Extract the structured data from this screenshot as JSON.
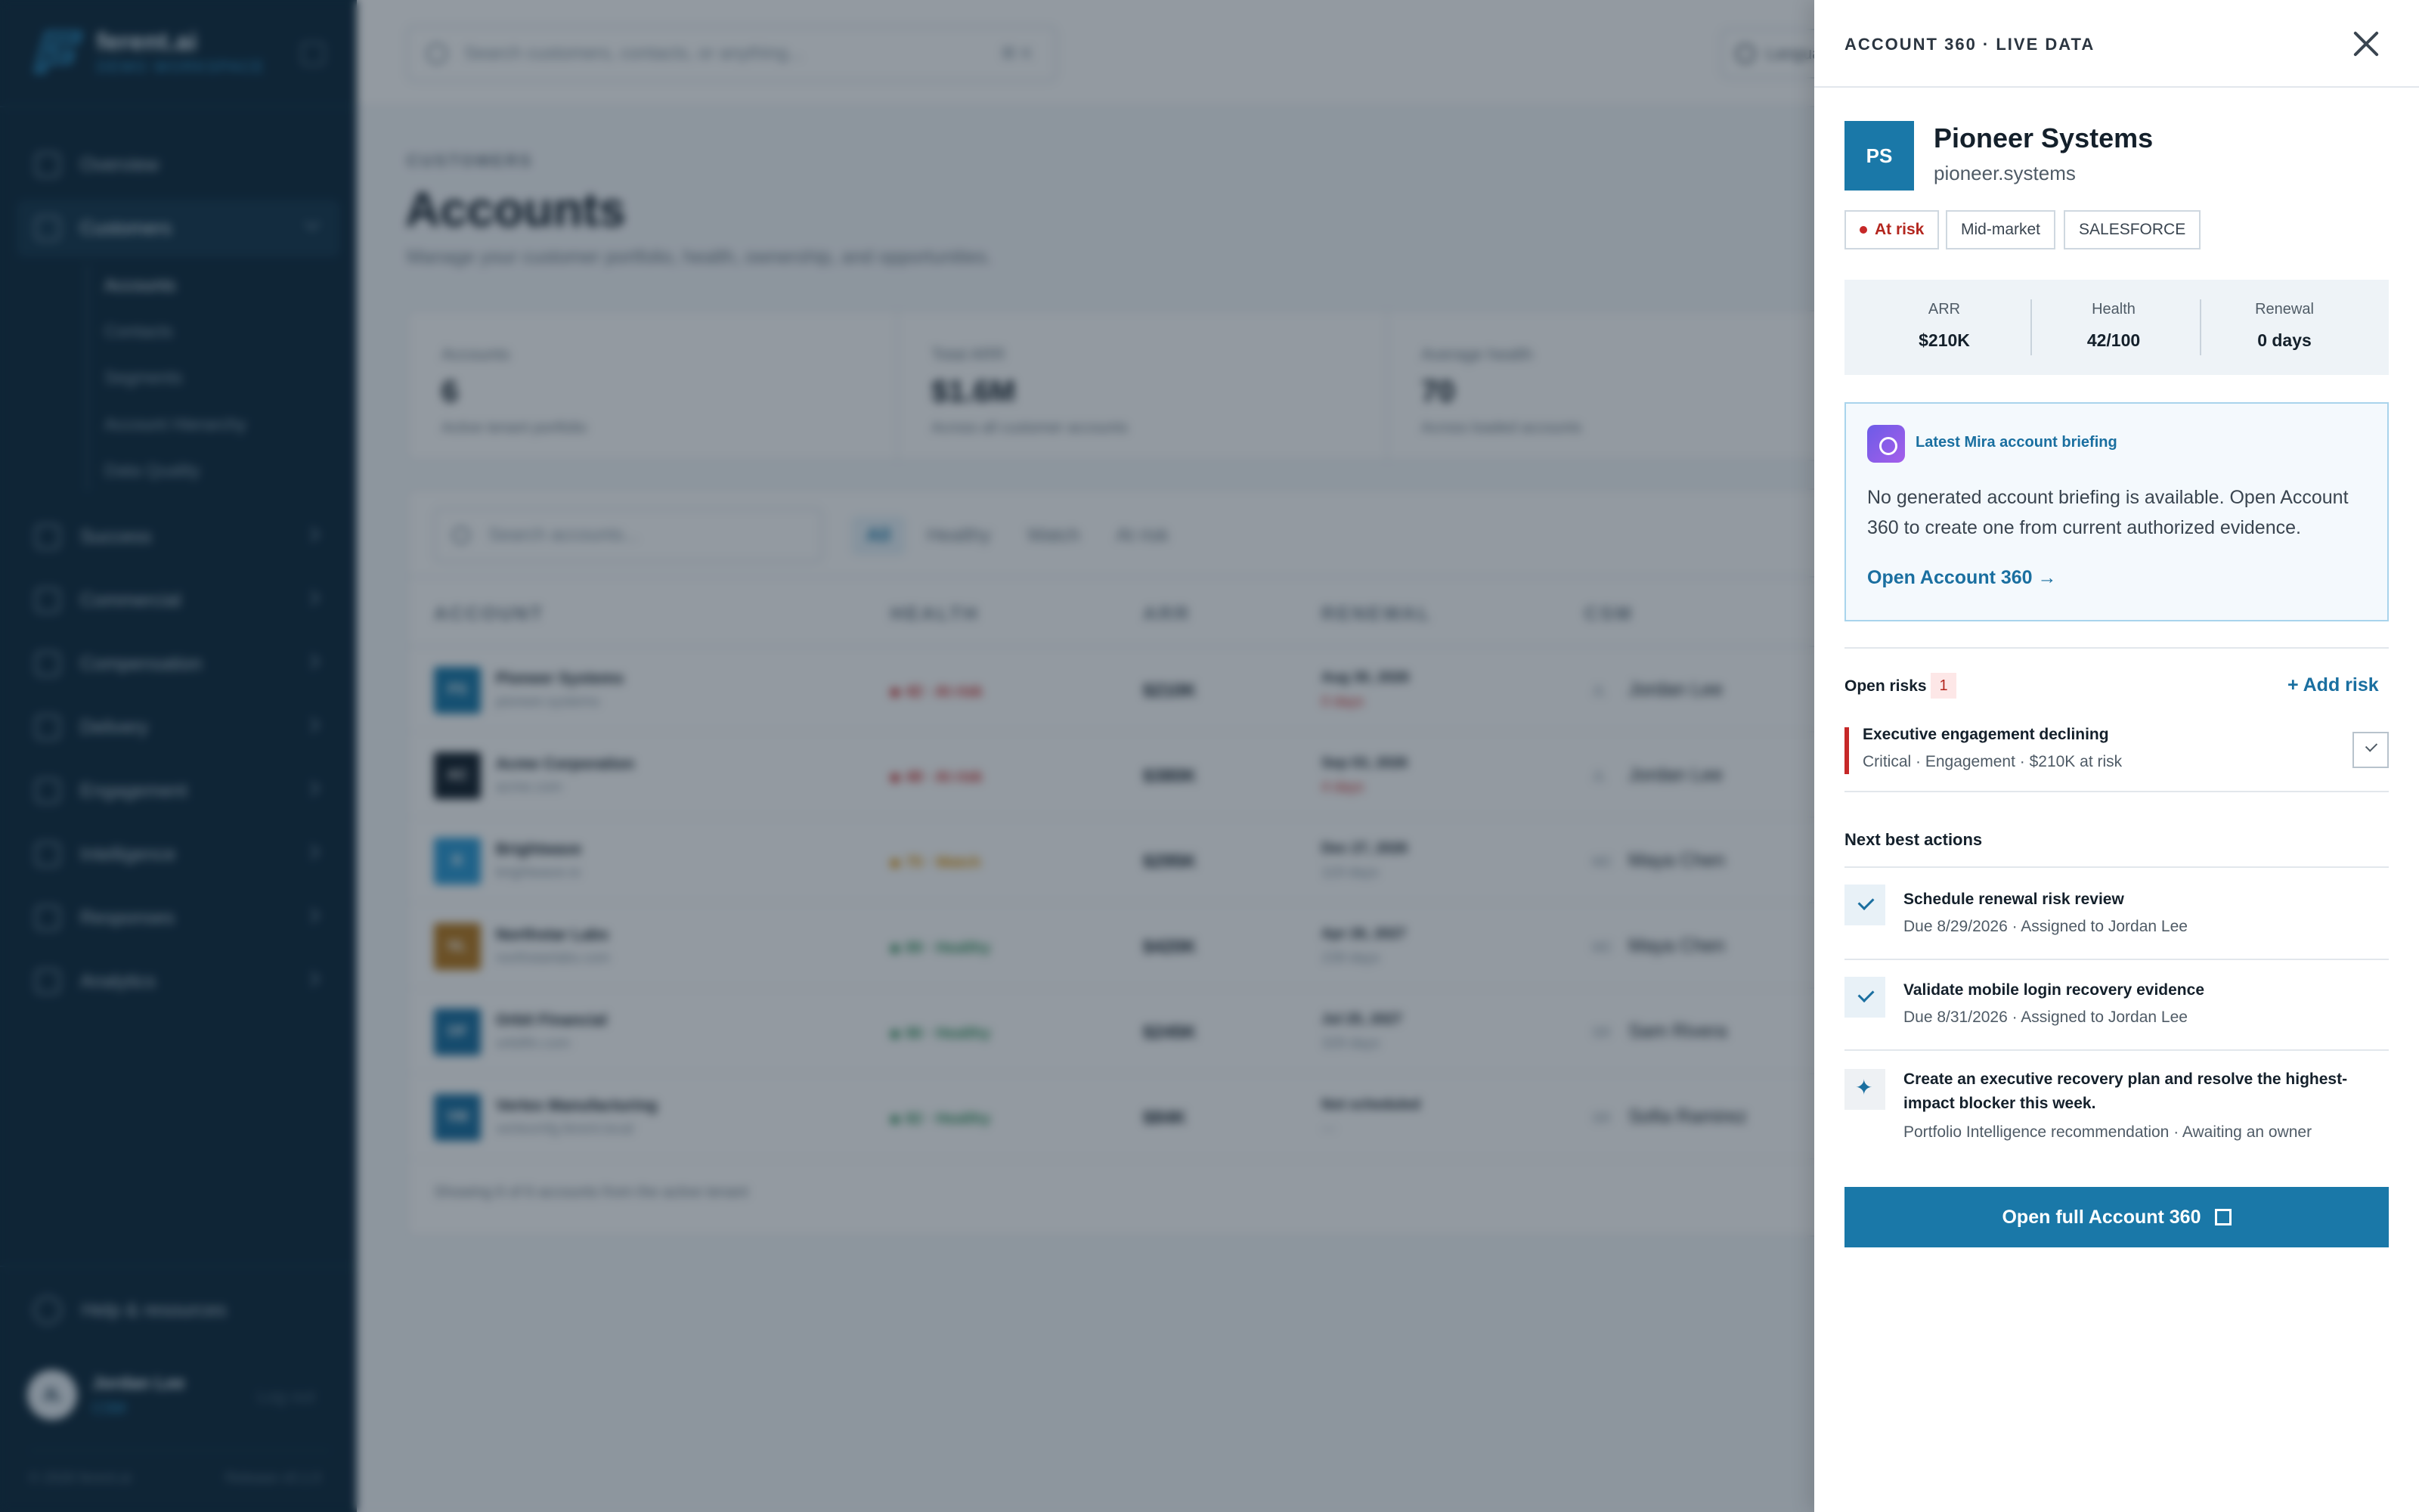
{
  "brand": {
    "name": "ferent.ai",
    "workspace": "DEMO WORKSPACE"
  },
  "sidebar": {
    "items": [
      {
        "label": "Overview"
      },
      {
        "label": "Customers"
      },
      {
        "label": "Success"
      },
      {
        "label": "Commercial"
      },
      {
        "label": "Compensation"
      },
      {
        "label": "Delivery"
      },
      {
        "label": "Engagement"
      },
      {
        "label": "Intelligence"
      },
      {
        "label": "Responses"
      },
      {
        "label": "Analytics"
      }
    ],
    "customers_sub": [
      "Accounts",
      "Contacts",
      "Segments",
      "Account Hierarchy",
      "Data Quality"
    ],
    "help": "Help & resources",
    "user": {
      "initials": "JL",
      "name": "Jordan Lee",
      "role": "CSM",
      "logout": "Log out"
    },
    "footer": {
      "copyright": "© 2026 ferent.ai",
      "release": "Release v0.1.0"
    }
  },
  "topbar": {
    "search_placeholder": "Search customers, contacts, or anything...",
    "shortcut": "⌘ K",
    "language": "Languag"
  },
  "page": {
    "eyebrow": "CUSTOMERS",
    "title": "Accounts",
    "subtitle": "Manage your customer portfolio, health, ownership, and opportunities."
  },
  "kpis": [
    {
      "label": "Accounts",
      "value": "6",
      "note": "Active tenant portfolio"
    },
    {
      "label": "Total ARR",
      "value": "$1.6M",
      "note": "Across all customer accounts"
    },
    {
      "label": "Average health",
      "value": "70",
      "note": "Across loaded accounts"
    }
  ],
  "table": {
    "search_placeholder": "Search accounts...",
    "filters": [
      "All",
      "Healthy",
      "Watch",
      "At risk"
    ],
    "columns": [
      "ACCOUNT",
      "HEALTH",
      "ARR",
      "RENEWAL",
      "CSM"
    ],
    "rows": [
      {
        "initials": "PS",
        "color": "#1a78a8",
        "name": "Pioneer Systems",
        "domain": "pioneer.systems",
        "health": "42 · At risk",
        "health_color": "#c62828",
        "arr": "$210K",
        "renewal": "Aug 30, 2026",
        "renewal_sub": "0 days",
        "renewal_sub_color": "#c62828",
        "csm_initials": "JL",
        "csm": "Jordan Lee"
      },
      {
        "initials": "AC",
        "color": "#14202b",
        "name": "Acme Corporation",
        "domain": "acme.com",
        "health": "48 · At risk",
        "health_color": "#c62828",
        "arr": "$380K",
        "renewal": "Sep 03, 2026",
        "renewal_sub": "4 days",
        "renewal_sub_color": "#c62828",
        "csm_initials": "JL",
        "csm": "Jordan Lee"
      },
      {
        "initials": "B",
        "color": "#2d9ad4",
        "name": "Brightwave",
        "domain": "brightwave.io",
        "health": "75 · Watch",
        "health_color": "#d98c00",
        "arr": "$295K",
        "renewal": "Dec 27, 2026",
        "renewal_sub": "119 days",
        "renewal_sub_color": "#8796a3",
        "csm_initials": "MC",
        "csm": "Maya Chen"
      },
      {
        "initials": "NL",
        "color": "#b7791f",
        "name": "Northstar Labs",
        "domain": "northstarlabs.com",
        "health": "89 · Healthy",
        "health_color": "#2e8b57",
        "arr": "$420K",
        "renewal": "Apr 26, 2027",
        "renewal_sub": "239 days",
        "renewal_sub_color": "#8796a3",
        "csm_initials": "MC",
        "csm": "Maya Chen"
      },
      {
        "initials": "OF",
        "color": "#1a6fa0",
        "name": "Orbit Financial",
        "domain": "orbitfin.com",
        "health": "86 · Healthy",
        "health_color": "#2e8b57",
        "arr": "$245K",
        "renewal": "Jul 25, 2027",
        "renewal_sub": "329 days",
        "renewal_sub_color": "#8796a3",
        "csm_initials": "SR",
        "csm": "Sam Rivera"
      },
      {
        "initials": "VM",
        "color": "#1a6fa0",
        "name": "Vertex Manufacturing",
        "domain": "vertexmfg.ferent.local",
        "health": "82 · Healthy",
        "health_color": "#2e8b57",
        "arr": "$84K",
        "renewal": "Not scheduled",
        "renewal_sub": "—",
        "renewal_sub_color": "#8796a3",
        "csm_initials": "SR",
        "csm": "Sofia Ramirez"
      }
    ],
    "footer": "Showing 6 of 6 accounts from the active tenant"
  },
  "drawer": {
    "title": "ACCOUNT 360 · LIVE DATA",
    "account": {
      "initials": "PS",
      "name": "Pioneer Systems",
      "domain": "pioneer.systems"
    },
    "badges": {
      "risk": "At risk",
      "segment": "Mid-market",
      "source": "SALESFORCE"
    },
    "metrics": [
      {
        "label": "ARR",
        "value": "$210K"
      },
      {
        "label": "Health",
        "value": "42/100"
      },
      {
        "label": "Renewal",
        "value": "0 days"
      }
    ],
    "briefing": {
      "title": "Latest Mira account briefing",
      "text": "No generated account briefing is available. Open Account 360 to create one from current authorized evidence.",
      "link": "Open Account 360 →"
    },
    "risks": {
      "label": "Open risks",
      "count": "1",
      "add": "+ Add risk",
      "items": [
        {
          "title": "Executive engagement declining",
          "meta": "Critical · Engagement · $210K at risk"
        }
      ]
    },
    "next_actions": {
      "label": "Next best actions",
      "items": [
        {
          "title": "Schedule renewal risk review",
          "meta": "Due 8/29/2026 · Assigned to Jordan Lee",
          "icon": "check-icon"
        },
        {
          "title": "Validate mobile login recovery evidence",
          "meta": "Due 8/31/2026 · Assigned to Jordan Lee",
          "icon": "check-icon"
        },
        {
          "title": "Create an executive recovery plan and resolve the highest-impact blocker this week.",
          "meta": "Portfolio Intelligence recommendation · Awaiting an owner",
          "icon": "sparkle-icon"
        }
      ]
    },
    "open_full": "Open full Account 360"
  },
  "colors": {
    "accent": "#1a78a8",
    "sidebar": "#0f2a3d",
    "danger": "#c62828",
    "warning": "#d98c00",
    "success": "#2e8b57"
  }
}
